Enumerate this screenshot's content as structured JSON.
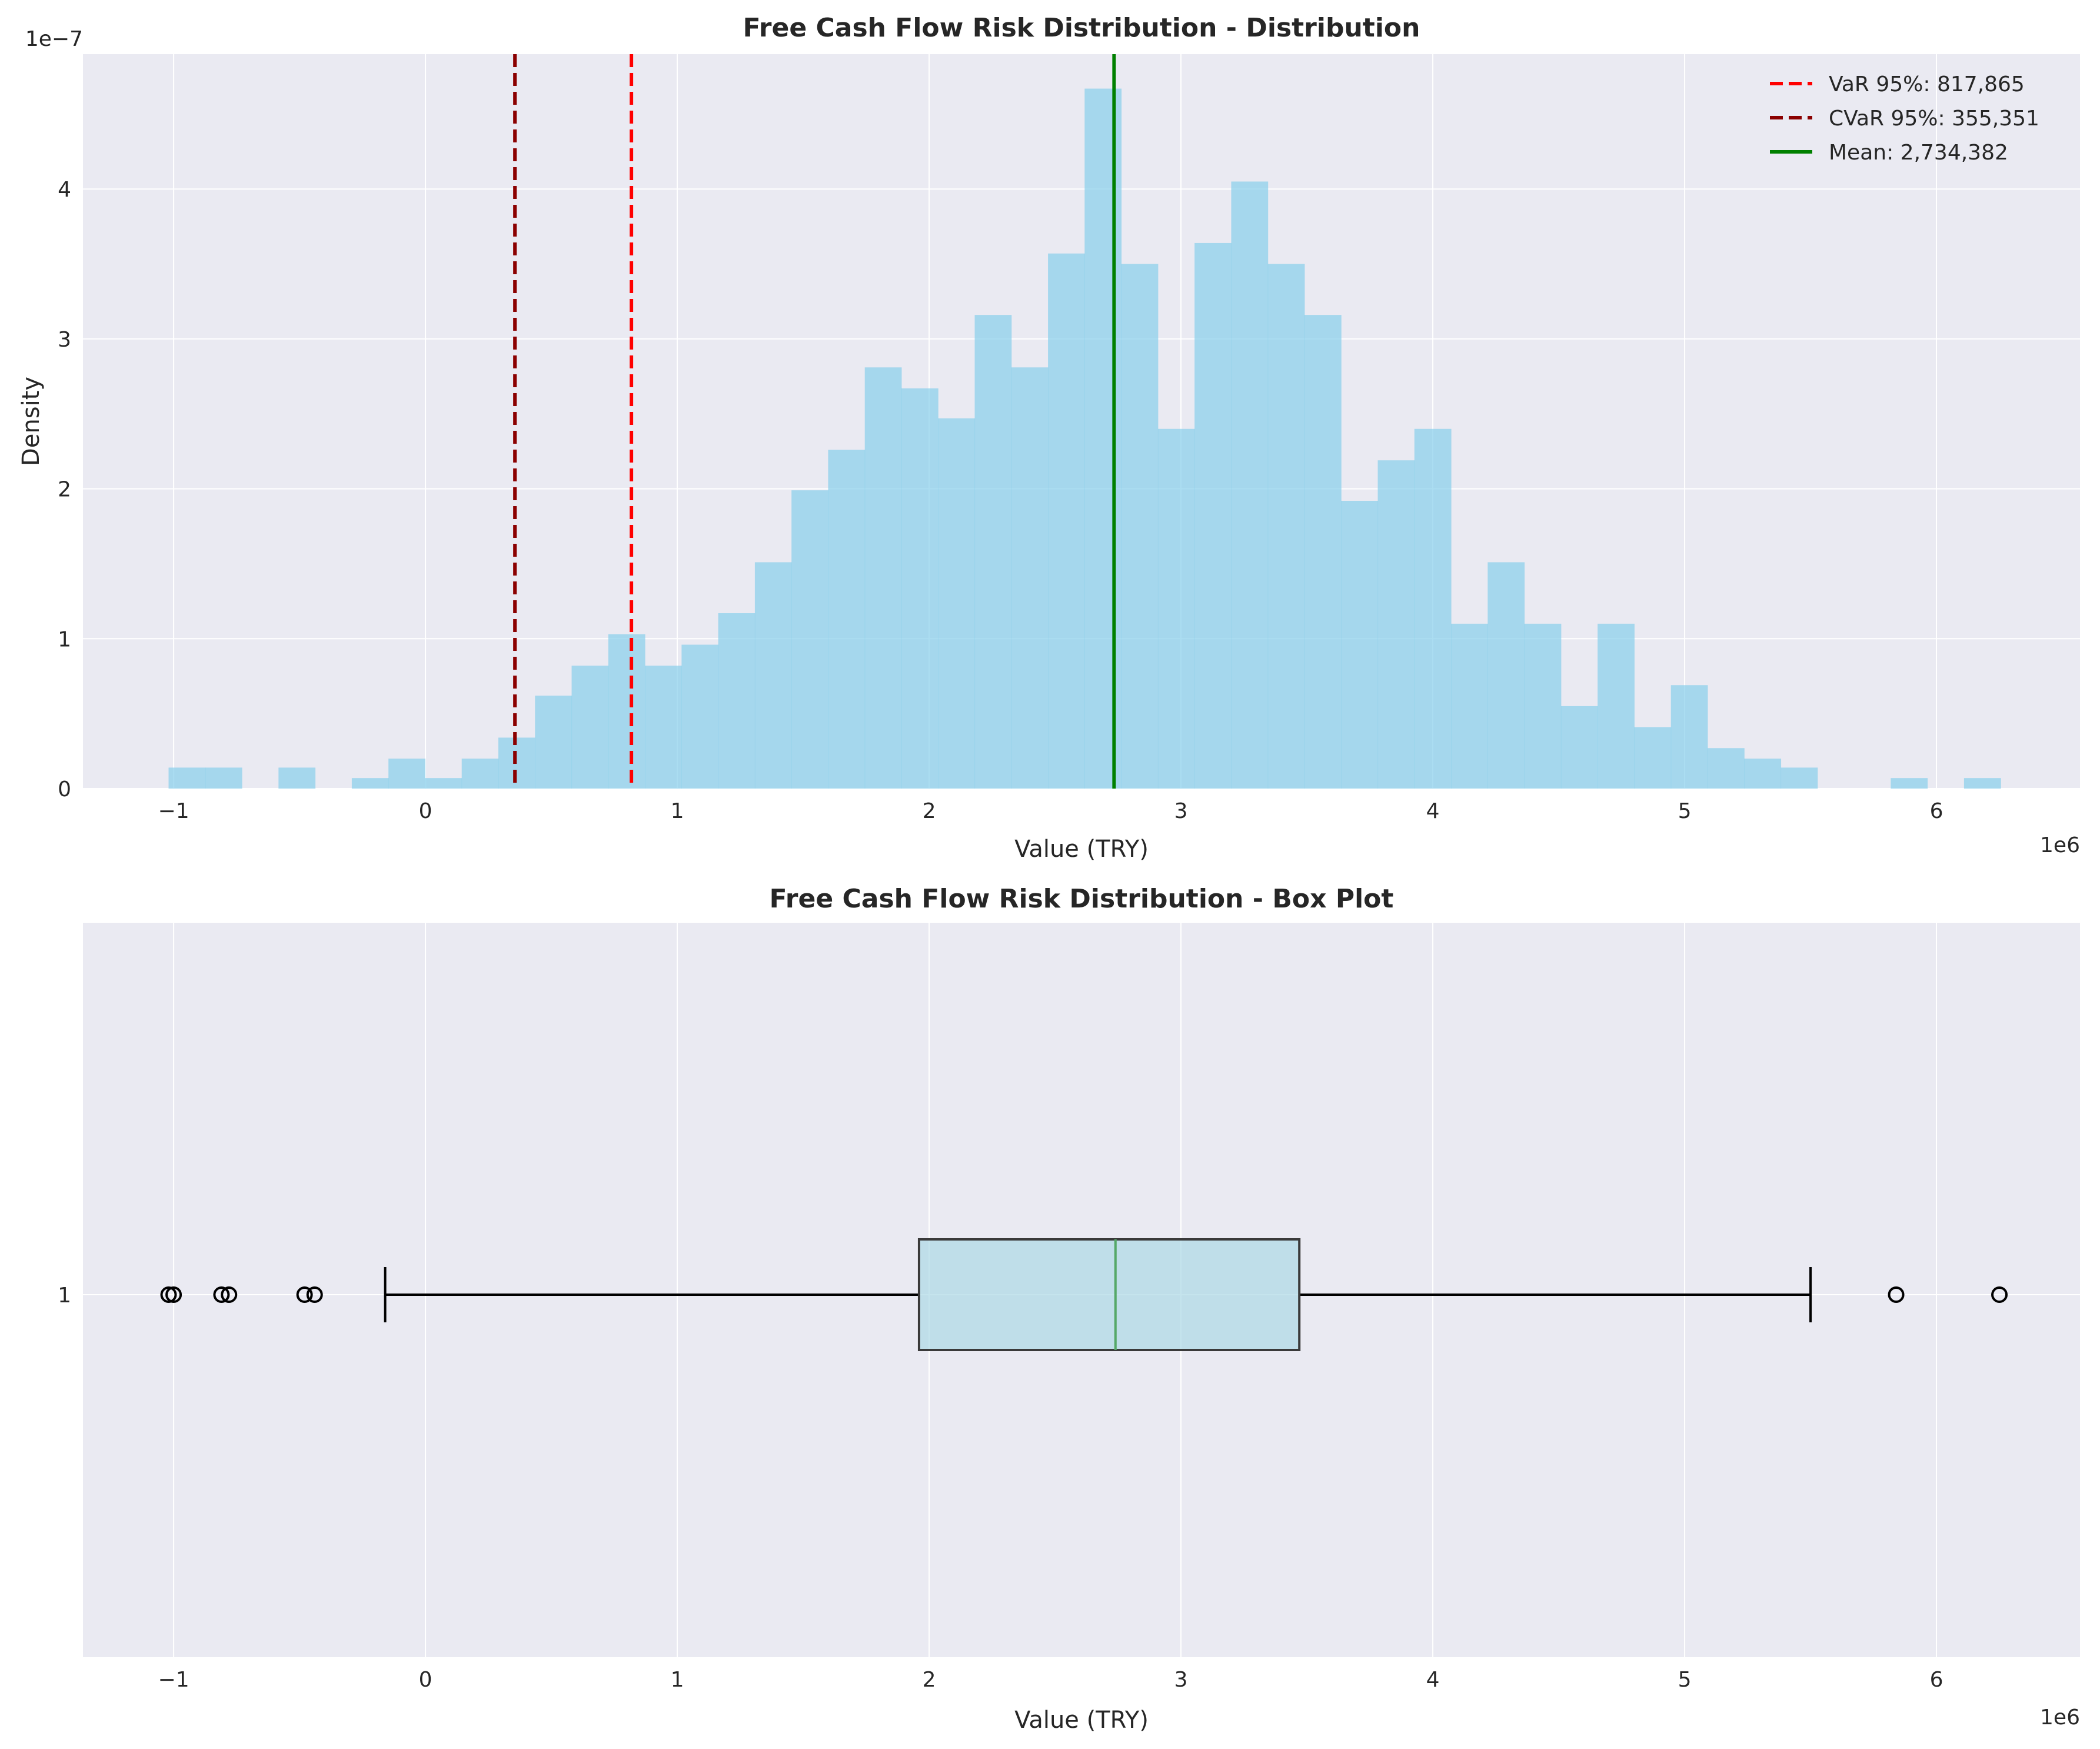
{
  "colors": {
    "axes_bg": "#EAEAF2",
    "grid": "#ffffff",
    "hist": "#87CEEB",
    "var": "#FF0000",
    "cvar": "#8B0000",
    "mean": "#008000",
    "box_fill": "#ADD8E6",
    "median": "#55A868",
    "box_edge": "#3a3a3a"
  },
  "chart_data": [
    {
      "type": "bar",
      "subtype": "histogram",
      "title": "Free Cash Flow Risk Distribution - Distribution",
      "xlabel": "Value (TRY)",
      "ylabel": "Density",
      "x_offset_text": "1e6",
      "y_offset_text": "1e−7",
      "xlim": [
        -1.36,
        6.57
      ],
      "ylim": [
        0,
        4.9
      ],
      "x_ticks": [
        -1,
        0,
        1,
        2,
        3,
        4,
        5,
        6
      ],
      "x_tick_labels": [
        "−1",
        "0",
        "1",
        "2",
        "3",
        "4",
        "5",
        "6"
      ],
      "y_ticks": [
        0,
        1,
        2,
        3,
        4
      ],
      "y_tick_labels": [
        "0",
        "1",
        "2",
        "3",
        "4"
      ],
      "grid": true,
      "bins": {
        "start": -1.02,
        "width": 0.1455,
        "density": [
          0.14,
          0.14,
          0,
          0.14,
          0,
          0.07,
          0.2,
          0.07,
          0.2,
          0.34,
          0.62,
          0.82,
          1.03,
          0.82,
          0.96,
          1.17,
          1.51,
          1.99,
          2.26,
          2.81,
          2.67,
          2.47,
          3.16,
          2.81,
          3.57,
          4.67,
          3.5,
          2.4,
          3.64,
          4.05,
          3.5,
          3.16,
          1.92,
          2.19,
          2.4,
          1.1,
          1.51,
          1.1,
          0.55,
          1.1,
          0.41,
          0.69,
          0.27,
          0.2,
          0.14,
          0,
          0,
          0.07,
          0,
          0.07
        ]
      },
      "reference_lines": [
        {
          "label": "VaR 95%: 817,865",
          "value": 0.817865,
          "style": "dashed",
          "color_key": "var"
        },
        {
          "label": "CVaR 95%: 355,351",
          "value": 0.355351,
          "style": "dashed",
          "color_key": "cvar"
        },
        {
          "label": "Mean: 2,734,382",
          "value": 2.734382,
          "style": "solid",
          "color_key": "mean"
        }
      ],
      "legend_position": "top-right"
    },
    {
      "type": "box",
      "title": "Free Cash Flow Risk Distribution - Box Plot",
      "xlabel": "Value (TRY)",
      "x_offset_text": "1e6",
      "xlim": [
        -1.36,
        6.57
      ],
      "x_ticks": [
        -1,
        0,
        1,
        2,
        3,
        4,
        5,
        6
      ],
      "x_tick_labels": [
        "−1",
        "0",
        "1",
        "2",
        "3",
        "4",
        "5",
        "6"
      ],
      "y_tick_labels": [
        "1"
      ],
      "grid": true,
      "box": {
        "whisker_low": -0.16,
        "q1": 1.96,
        "median": 2.74,
        "q3": 3.47,
        "whisker_high": 5.5
      },
      "outliers": [
        -1.02,
        -1.0,
        -0.81,
        -0.78,
        -0.48,
        -0.44,
        5.84,
        6.25
      ]
    }
  ]
}
